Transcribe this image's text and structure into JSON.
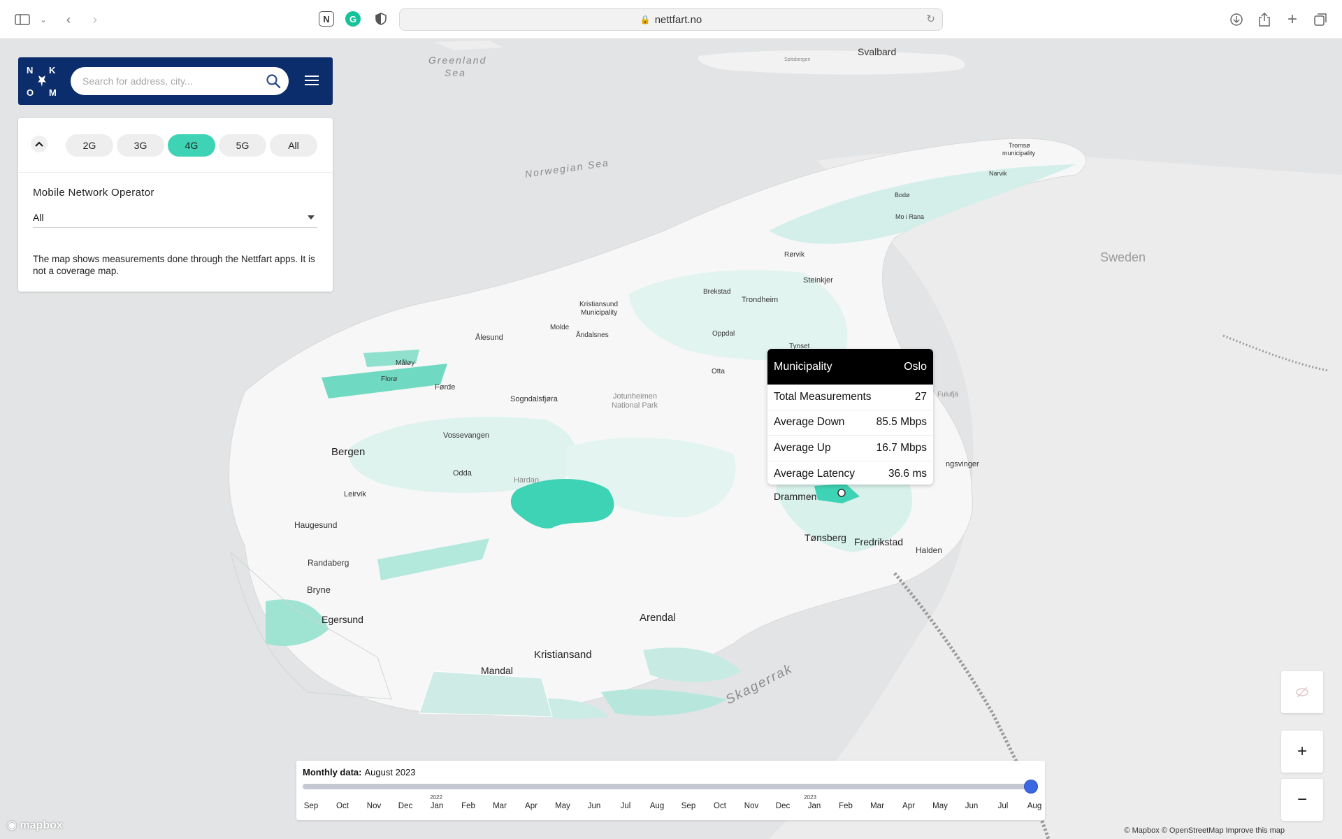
{
  "browser": {
    "url": "nettfart.no"
  },
  "header": {
    "logo_letters": [
      "N",
      "K",
      "O",
      "M"
    ],
    "search_placeholder": "Search for address, city..."
  },
  "filters": {
    "technologies": [
      "2G",
      "3G",
      "4G",
      "5G",
      "All"
    ],
    "active_technology": "4G",
    "operator_label": "Mobile Network Operator",
    "operator_value": "All",
    "note": "The map shows measurements done through the Nettfart apps. It is not a coverage map."
  },
  "tooltip": {
    "header_label": "Municipality",
    "header_value": "Oslo",
    "rows": [
      {
        "label": "Total Measurements",
        "value": "27"
      },
      {
        "label": "Average Down",
        "value": "85.5 Mbps"
      },
      {
        "label": "Average Up",
        "value": "16.7 Mbps"
      },
      {
        "label": "Average Latency",
        "value": "36.6 ms"
      }
    ]
  },
  "map_labels": {
    "greenland_sea_1": "Greenland",
    "greenland_sea_2": "Sea",
    "svalbard": "Svalbard",
    "spitsbergen": "Spitsbergen",
    "norwegian_sea": "Norwegian Sea",
    "sweden": "Sweden",
    "skagerrak": "Skagerrak",
    "tromso_1": "Tromsø",
    "tromso_2": "municipality",
    "narvik": "Narvik",
    "bodo": "Bodø",
    "mo_i_rana": "Mo i Rana",
    "rorvik": "Rørvik",
    "steinkjer": "Steinkjer",
    "brekstad": "Brekstad",
    "trondheim": "Trondheim",
    "kristiansund_1": "Kristiansund",
    "kristiansund_2": "Municipality",
    "molde": "Molde",
    "andalsnes": "Åndalsnes",
    "alesund": "Ålesund",
    "oppdal": "Oppdal",
    "tynset": "Tynset",
    "maloy": "Måløy",
    "floro": "Florø",
    "forde": "Førde",
    "otta": "Otta",
    "sogndalsfjora": "Sogndalsfjøra",
    "jotunheimen_1": "Jotunheimen",
    "jotunheimen_2": "National Park",
    "fulufjallet": "Fulufjä",
    "bergen": "Bergen",
    "vossevangen": "Vossevangen",
    "odda": "Odda",
    "hardanger": "Hardan",
    "leirvik": "Leirvik",
    "kongsvinger": "ngsvinger",
    "drammen": "Drammen",
    "haugesund": "Haugesund",
    "tonsberg": "Tønsberg",
    "fredrikstad": "Fredrikstad",
    "halden": "Halden",
    "randaberg": "Randaberg",
    "bryne": "Bryne",
    "egersund": "Egersund",
    "arendal": "Arendal",
    "kristiansand": "Kristiansand",
    "mandal": "Mandal"
  },
  "timeline": {
    "title_label": "Monthly data:",
    "title_value": "August 2023",
    "months": [
      "Sep",
      "Oct",
      "Nov",
      "Dec",
      "Jan",
      "Feb",
      "Mar",
      "Apr",
      "May",
      "Jun",
      "Jul",
      "Aug",
      "Sep",
      "Oct",
      "Nov",
      "Dec",
      "Jan",
      "Feb",
      "Mar",
      "Apr",
      "May",
      "Jun",
      "Jul",
      "Aug"
    ],
    "year_2022": "2022",
    "year_2023": "2023",
    "selected_index": 23
  },
  "controls": {
    "zoom_in": "+",
    "zoom_out": "−"
  },
  "footer": {
    "mapbox": "mapbox",
    "attribution": "© Mapbox  © OpenStreetMap  Improve this map"
  },
  "colors": {
    "accent": "#3ed3b4",
    "header_bg": "#0c2d6b",
    "slider": "#3b67e0"
  }
}
